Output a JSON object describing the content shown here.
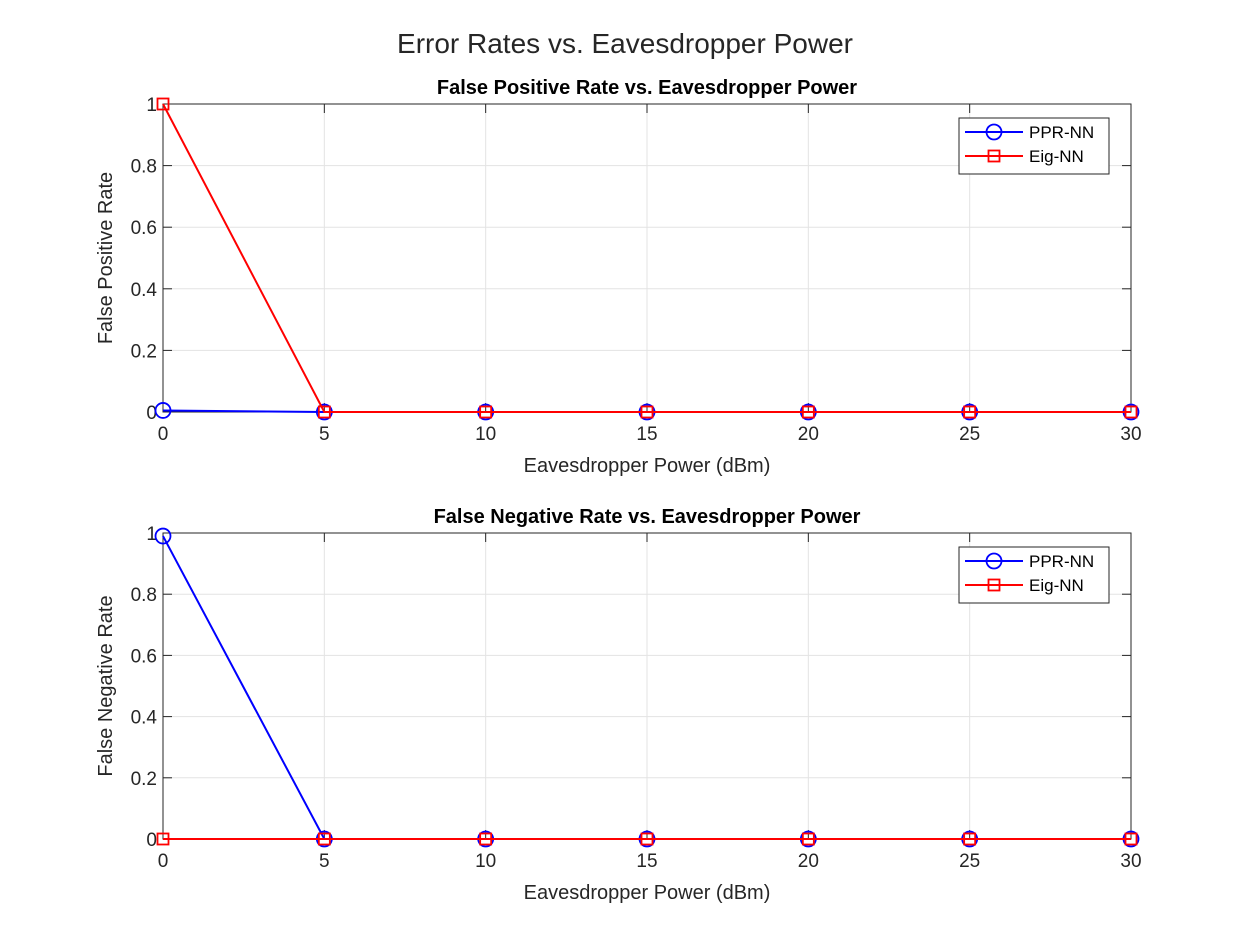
{
  "figure_title": "Error Rates vs. Eavesdropper Power",
  "chart_data": [
    {
      "type": "line",
      "title": "False Positive Rate vs. Eavesdropper Power",
      "xlabel": "Eavesdropper Power (dBm)",
      "ylabel": "False Positive Rate",
      "x": [
        0,
        5,
        10,
        15,
        20,
        25,
        30
      ],
      "xlim": [
        0,
        30
      ],
      "ylim": [
        0,
        1
      ],
      "xticks": [
        "0",
        "5",
        "10",
        "15",
        "20",
        "25",
        "30"
      ],
      "yticks": [
        "0",
        "0.2",
        "0.4",
        "0.6",
        "0.8",
        "1"
      ],
      "grid": true,
      "legend_position": "top-right",
      "series": [
        {
          "name": "PPR-NN",
          "color": "#0000ff",
          "marker": "circle",
          "values": [
            0.005,
            0,
            0,
            0,
            0,
            0,
            0
          ]
        },
        {
          "name": "Eig-NN",
          "color": "#ff0000",
          "marker": "square",
          "values": [
            1,
            0,
            0,
            0,
            0,
            0,
            0
          ]
        }
      ]
    },
    {
      "type": "line",
      "title": "False Negative Rate vs. Eavesdropper Power",
      "xlabel": "Eavesdropper Power (dBm)",
      "ylabel": "False Negative Rate",
      "x": [
        0,
        5,
        10,
        15,
        20,
        25,
        30
      ],
      "xlim": [
        0,
        30
      ],
      "ylim": [
        0,
        1
      ],
      "xticks": [
        "0",
        "5",
        "10",
        "15",
        "20",
        "25",
        "30"
      ],
      "yticks": [
        "0",
        "0.2",
        "0.4",
        "0.6",
        "0.8",
        "1"
      ],
      "grid": true,
      "legend_position": "top-right",
      "series": [
        {
          "name": "PPR-NN",
          "color": "#0000ff",
          "marker": "circle",
          "values": [
            0.99,
            0,
            0,
            0,
            0,
            0,
            0
          ]
        },
        {
          "name": "Eig-NN",
          "color": "#ff0000",
          "marker": "square",
          "values": [
            0,
            0,
            0,
            0,
            0,
            0,
            0
          ]
        }
      ]
    }
  ]
}
